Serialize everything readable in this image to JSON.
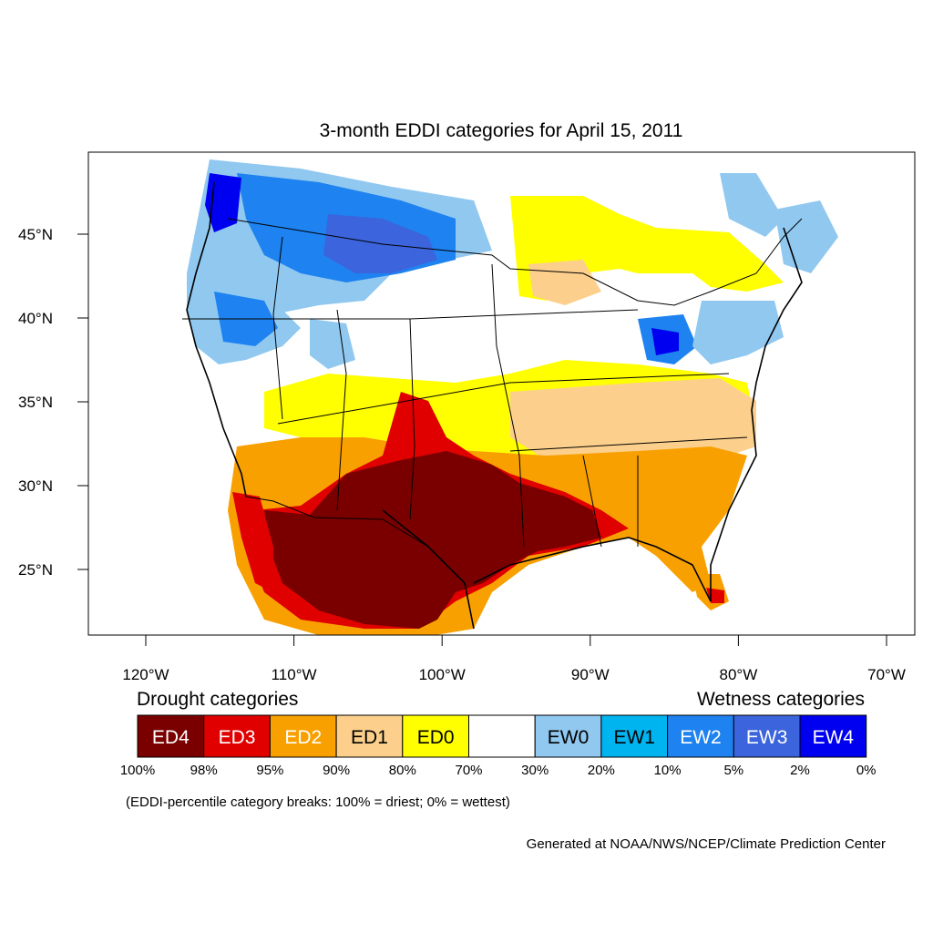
{
  "title": "3-month EDDI categories for April 15, 2011",
  "lat_ticks": [
    {
      "label": "45°N",
      "lat": 45
    },
    {
      "label": "40°N",
      "lat": 40
    },
    {
      "label": "35°N",
      "lat": 35
    },
    {
      "label": "30°N",
      "lat": 30
    },
    {
      "label": "25°N",
      "lat": 25
    }
  ],
  "lon_ticks": [
    {
      "label": "120°W",
      "lon": -120
    },
    {
      "label": "110°W",
      "lon": -110
    },
    {
      "label": "100°W",
      "lon": -100
    },
    {
      "label": "90°W",
      "lon": -90
    },
    {
      "label": "80°W",
      "lon": -80
    },
    {
      "label": "70°W",
      "lon": -70
    }
  ],
  "legend": {
    "drought_heading": "Drought categories",
    "wetness_heading": "Wetness categories",
    "categories": [
      {
        "label": "ED4",
        "color": "#7a0000",
        "text_color": "#ffffff"
      },
      {
        "label": "ED3",
        "color": "#e00000",
        "text_color": "#ffffff"
      },
      {
        "label": "ED2",
        "color": "#f8a000",
        "text_color": "#ffffff"
      },
      {
        "label": "ED1",
        "color": "#fcd08c",
        "text_color": "#000000"
      },
      {
        "label": "ED0",
        "color": "#ffff00",
        "text_color": "#000000"
      },
      {
        "label": "",
        "color": "#ffffff",
        "text_color": "#000000"
      },
      {
        "label": "EW0",
        "color": "#90c8f0",
        "text_color": "#000000"
      },
      {
        "label": "EW1",
        "color": "#00b4f0",
        "text_color": "#000000"
      },
      {
        "label": "EW2",
        "color": "#1e82f0",
        "text_color": "#ffffff"
      },
      {
        "label": "EW3",
        "color": "#3c64dc",
        "text_color": "#ffffff"
      },
      {
        "label": "EW4",
        "color": "#0000f0",
        "text_color": "#ffffff"
      }
    ],
    "breaks": [
      "100%",
      "98%",
      "95%",
      "90%",
      "80%",
      "70%",
      "30%",
      "20%",
      "10%",
      "5%",
      "2%",
      "0%"
    ],
    "note": "(EDDI-percentile category breaks: 100% = driest; 0% = wettest)"
  },
  "credit": "Generated at NOAA/NWS/NCEP/Climate Prediction Center"
}
